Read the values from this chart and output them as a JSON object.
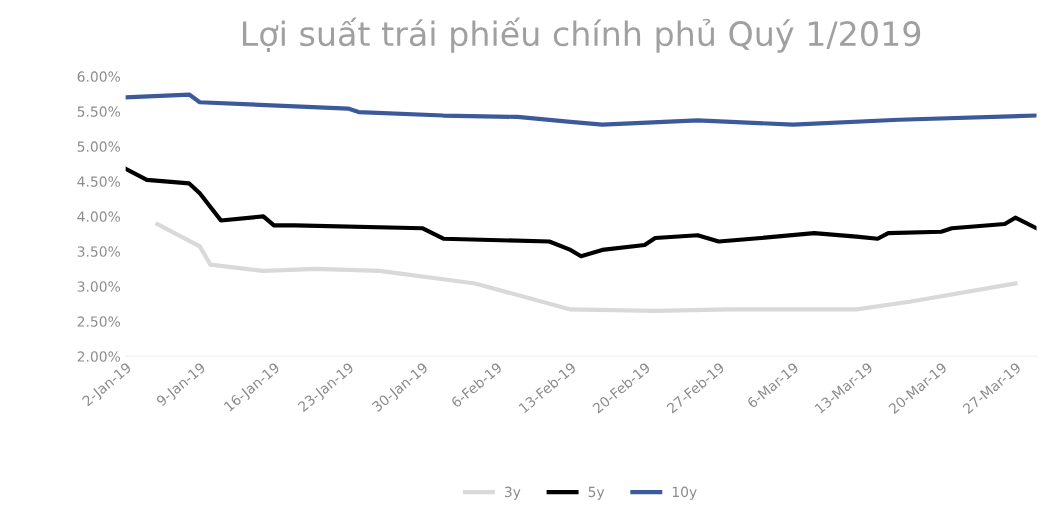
{
  "chart_data": {
    "type": "line",
    "title": "Lợi suất trái phiếu chính phủ Quý 1/2019",
    "xlim": [
      "2019-01-02",
      "2019-03-29"
    ],
    "xticks": [
      {
        "value": "2019-01-02",
        "label": "2-Jan-19"
      },
      {
        "value": "2019-01-09",
        "label": "9-Jan-19"
      },
      {
        "value": "2019-01-16",
        "label": "16-Jan-19"
      },
      {
        "value": "2019-01-23",
        "label": "23-Jan-19"
      },
      {
        "value": "2019-01-30",
        "label": "30-Jan-19"
      },
      {
        "value": "2019-02-06",
        "label": "6-Feb-19"
      },
      {
        "value": "2019-02-13",
        "label": "13-Feb-19"
      },
      {
        "value": "2019-02-20",
        "label": "20-Feb-19"
      },
      {
        "value": "2019-02-27",
        "label": "27-Feb-19"
      },
      {
        "value": "2019-03-06",
        "label": "6-Mar-19"
      },
      {
        "value": "2019-03-13",
        "label": "13-Mar-19"
      },
      {
        "value": "2019-03-20",
        "label": "20-Mar-19"
      },
      {
        "value": "2019-03-27",
        "label": "27-Mar-19"
      }
    ],
    "ylim": [
      2.0,
      6.0
    ],
    "yticks": [
      {
        "value": 2.0,
        "label": "2.00%"
      },
      {
        "value": 2.5,
        "label": "2.50%"
      },
      {
        "value": 3.0,
        "label": "3.00%"
      },
      {
        "value": 3.5,
        "label": "3.50%"
      },
      {
        "value": 4.0,
        "label": "4.00%"
      },
      {
        "value": 4.5,
        "label": "4.50%"
      },
      {
        "value": 5.0,
        "label": "5.00%"
      },
      {
        "value": 5.5,
        "label": "5.50%"
      },
      {
        "value": 6.0,
        "label": "6.00%"
      }
    ],
    "grid": false,
    "legend": "bottom",
    "marker": "none",
    "line_style": "solid",
    "series": [
      {
        "name": "3y",
        "color": "#d9d9d9",
        "x": [
          "2019-01-05",
          "2019-01-09",
          "2019-01-10",
          "2019-01-15",
          "2019-01-20",
          "2019-01-26",
          "2019-02-04",
          "2019-02-13",
          "2019-02-21",
          "2019-02-28",
          "2019-03-06",
          "2019-03-12",
          "2019-03-17",
          "2019-03-27"
        ],
        "values": [
          3.89,
          3.57,
          3.31,
          3.22,
          3.25,
          3.22,
          3.04,
          2.67,
          2.65,
          2.67,
          2.67,
          2.67,
          2.78,
          3.04
        ]
      },
      {
        "name": "5y",
        "color": "#000000",
        "x": [
          "2019-01-02",
          "2019-01-04",
          "2019-01-08",
          "2019-01-09",
          "2019-01-11",
          "2019-01-15",
          "2019-01-16",
          "2019-01-18",
          "2019-01-30",
          "2019-02-01",
          "2019-02-11",
          "2019-02-13",
          "2019-02-14",
          "2019-02-16",
          "2019-02-20",
          "2019-02-21",
          "2019-02-25",
          "2019-02-27",
          "2019-03-03",
          "2019-03-08",
          "2019-03-12",
          "2019-03-14",
          "2019-03-15",
          "2019-03-20",
          "2019-03-21",
          "2019-03-26",
          "2019-03-27",
          "2019-03-29"
        ],
        "values": [
          4.68,
          4.52,
          4.47,
          4.33,
          3.94,
          4.0,
          3.87,
          3.87,
          3.83,
          3.68,
          3.64,
          3.52,
          3.43,
          3.52,
          3.59,
          3.69,
          3.73,
          3.64,
          3.69,
          3.76,
          3.71,
          3.68,
          3.76,
          3.78,
          3.83,
          3.89,
          3.98,
          3.83
        ]
      },
      {
        "name": "10y",
        "color": "#3c5a9a",
        "x": [
          "2019-01-02",
          "2019-01-08",
          "2019-01-09",
          "2019-01-23",
          "2019-01-24",
          "2019-02-01",
          "2019-02-08",
          "2019-02-13",
          "2019-02-16",
          "2019-02-25",
          "2019-03-06",
          "2019-03-16",
          "2019-03-29"
        ],
        "values": [
          5.7,
          5.74,
          5.63,
          5.54,
          5.49,
          5.44,
          5.42,
          5.35,
          5.31,
          5.37,
          5.31,
          5.38,
          5.44
        ]
      }
    ]
  }
}
